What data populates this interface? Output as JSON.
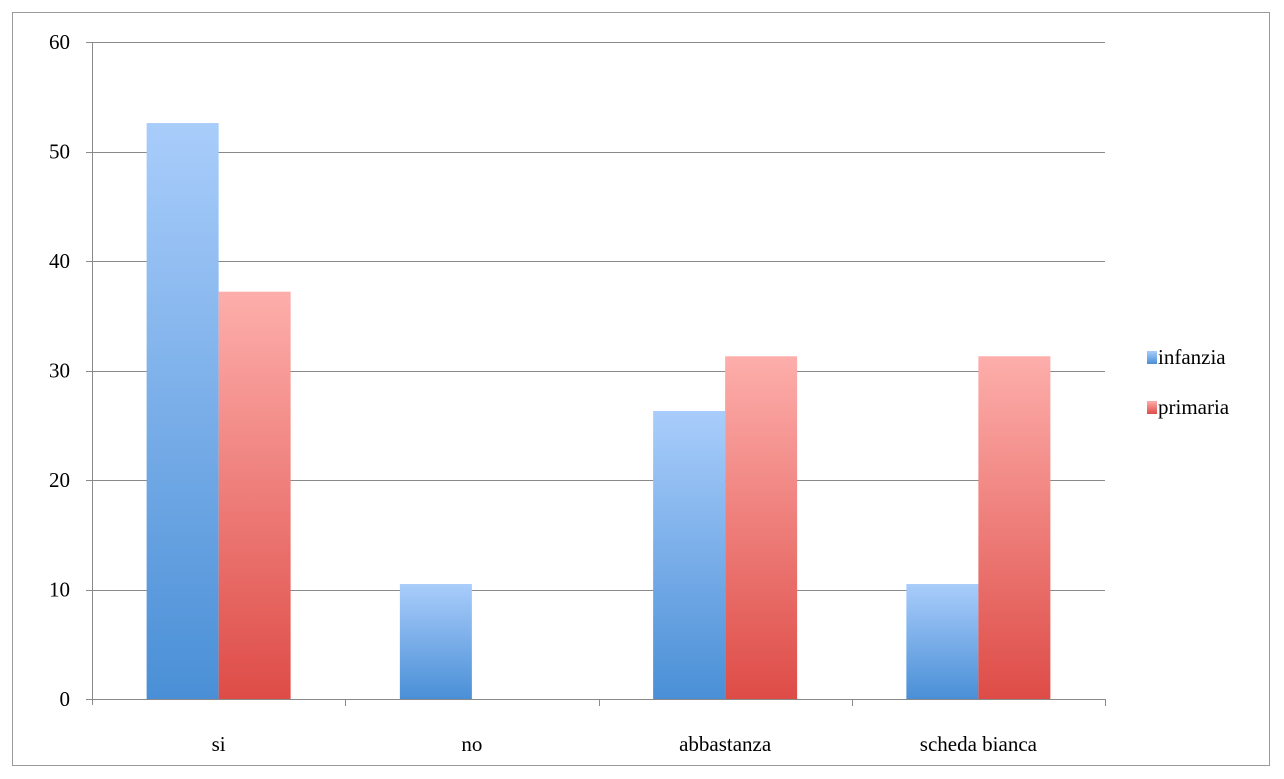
{
  "chart_data": {
    "type": "bar",
    "categories": [
      "si",
      "no",
      "abbastanza",
      "scheda bianca"
    ],
    "series": [
      {
        "name": "infanzia",
        "values": [
          52.6,
          10.5,
          26.3,
          10.5
        ],
        "color": "#4f93d8"
      },
      {
        "name": "primaria",
        "values": [
          37.2,
          0,
          31.3,
          31.3
        ],
        "color": "#e0514d"
      }
    ],
    "yticks": [
      0,
      10,
      20,
      30,
      40,
      50,
      60
    ],
    "ylim": [
      0,
      60
    ],
    "grid": true,
    "legend_position": "right"
  }
}
